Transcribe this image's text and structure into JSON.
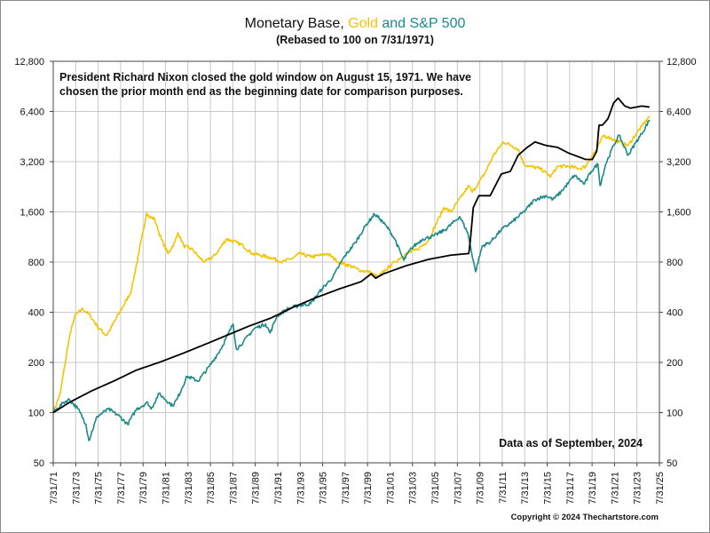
{
  "chart_data": {
    "type": "line",
    "title_parts": [
      {
        "text": "Monetary Base, ",
        "color": "#111111"
      },
      {
        "text": "Gold",
        "color": "#f5c400"
      },
      {
        "text": " and S&P 500",
        "color": "#1a8a8a"
      }
    ],
    "subtitle": "(Rebased to 100 on 7/31/1971)",
    "annotation": "President Richard Nixon closed the gold window on August 15, 1971.  We have chosen the prior month end as the beginning date for comparison purposes.",
    "data_note": "Data as of September, 2024",
    "y_scale": "log2",
    "ylim": [
      50,
      12800
    ],
    "xlim": [
      1971.58,
      2025.58
    ],
    "yticks": [
      "12,800",
      "6,400",
      "3,200",
      "1,600",
      "800",
      "400",
      "200",
      "100",
      "50"
    ],
    "xticks": [
      "7/31/71",
      "7/31/73",
      "7/31/75",
      "7/31/77",
      "7/31/79",
      "7/31/81",
      "7/31/83",
      "7/31/85",
      "7/31/87",
      "7/31/89",
      "7/31/91",
      "7/31/93",
      "7/31/95",
      "7/31/97",
      "7/31/99",
      "7/31/01",
      "7/31/03",
      "7/31/05",
      "7/31/07",
      "7/31/09",
      "7/31/11",
      "7/31/13",
      "7/31/15",
      "7/31/17",
      "7/31/19",
      "7/31/21",
      "7/31/23",
      "7/31/25"
    ],
    "grid": true,
    "series": [
      {
        "name": "Gold",
        "color": "#f5c400",
        "x": [
          1971.58,
          1972.2,
          1973.0,
          1973.5,
          1974.2,
          1974.9,
          1975.5,
          1976.3,
          1976.7,
          1977.5,
          1978.5,
          1979.2,
          1979.9,
          1980.1,
          1980.6,
          1981.2,
          1981.8,
          1982.4,
          1982.7,
          1983.2,
          1984.0,
          1984.6,
          1985.1,
          1986.0,
          1987.0,
          1987.9,
          1988.5,
          1989.3,
          1990.0,
          1991.0,
          1992.0,
          1993.0,
          1993.5,
          1994.5,
          1995.5,
          1996.0,
          1997.0,
          1998.0,
          1999.0,
          1999.7,
          2000.5,
          2001.2,
          2002.0,
          2003.0,
          2004.0,
          2005.0,
          2006.0,
          2006.4,
          2007.0,
          2008.0,
          2008.6,
          2008.9,
          2009.5,
          2010.0,
          2010.8,
          2011.7,
          2012.4,
          2013.0,
          2013.5,
          2014.0,
          2015.0,
          2015.9,
          2016.5,
          2017.5,
          2018.5,
          2019.0,
          2019.6,
          2020.0,
          2020.6,
          2021.0,
          2022.0,
          2022.8,
          2023.5,
          2024.0,
          2024.7
        ],
        "values": [
          100,
          130,
          280,
          380,
          420,
          380,
          330,
          290,
          320,
          400,
          530,
          900,
          1580,
          1500,
          1450,
          1100,
          900,
          1050,
          1200,
          1000,
          950,
          850,
          800,
          880,
          1100,
          1050,
          1000,
          900,
          880,
          850,
          800,
          850,
          900,
          860,
          880,
          900,
          800,
          760,
          710,
          700,
          650,
          720,
          800,
          900,
          950,
          1080,
          1500,
          1700,
          1600,
          2000,
          2300,
          2100,
          2400,
          2700,
          3500,
          4200,
          4000,
          3800,
          3100,
          3000,
          2900,
          2600,
          3000,
          3000,
          2900,
          3000,
          3500,
          3800,
          4600,
          4500,
          4200,
          4000,
          4700,
          5200,
          6000
        ]
      },
      {
        "name": "S&P 500",
        "color": "#1a8a8a",
        "x": [
          1971.58,
          1972.5,
          1973.0,
          1973.8,
          1974.5,
          1974.75,
          1975.5,
          1976.5,
          1977.5,
          1978.2,
          1979.0,
          1980.0,
          1980.3,
          1981.0,
          1982.2,
          1982.6,
          1983.5,
          1984.5,
          1985.5,
          1986.5,
          1987.6,
          1987.9,
          1988.5,
          1989.5,
          1990.5,
          1990.9,
          1991.5,
          1992.5,
          1993.5,
          1994.5,
          1995.5,
          1996.5,
          1997.5,
          1998.5,
          1999.5,
          2000.2,
          2000.7,
          2001.5,
          2002.0,
          2002.8,
          2003.5,
          2004.5,
          2005.5,
          2006.5,
          2007.8,
          2008.5,
          2009.2,
          2009.8,
          2010.5,
          2011.5,
          2012.5,
          2013.5,
          2014.5,
          2015.5,
          2016.1,
          2016.8,
          2017.5,
          2018.0,
          2018.9,
          2019.5,
          2020.1,
          2020.3,
          2020.8,
          2021.5,
          2021.99,
          2022.8,
          2023.5,
          2024.0,
          2024.7
        ],
        "values": [
          100,
          115,
          120,
          105,
          85,
          68,
          95,
          105,
          95,
          85,
          105,
          115,
          105,
          130,
          110,
          120,
          165,
          155,
          190,
          240,
          340,
          240,
          265,
          320,
          340,
          300,
          380,
          420,
          440,
          450,
          550,
          650,
          860,
          1050,
          1350,
          1550,
          1450,
          1250,
          1100,
          820,
          970,
          1100,
          1150,
          1250,
          1500,
          1200,
          700,
          1000,
          1050,
          1250,
          1400,
          1600,
          1900,
          2000,
          1900,
          2100,
          2400,
          2650,
          2350,
          2800,
          3100,
          2300,
          3100,
          4000,
          4600,
          3500,
          4200,
          4700,
          5700
        ]
      },
      {
        "name": "Monetary Base",
        "color": "#000000",
        "x": [
          1971.58,
          1973.0,
          1975.0,
          1977.0,
          1979.0,
          1981.0,
          1983.0,
          1985.0,
          1987.0,
          1989.0,
          1991.0,
          1993.0,
          1995.0,
          1997.0,
          1999.0,
          1999.9,
          2000.3,
          2001.0,
          2003.0,
          2005.0,
          2007.0,
          2008.6,
          2008.75,
          2009.0,
          2009.5,
          2010.5,
          2011.5,
          2012.3,
          2013.0,
          2013.8,
          2014.5,
          2015.5,
          2016.5,
          2017.5,
          2018.5,
          2019.0,
          2019.6,
          2020.0,
          2020.2,
          2020.5,
          2021.0,
          2021.5,
          2021.9,
          2022.5,
          2023.0,
          2023.5,
          2024.0,
          2024.7
        ],
        "values": [
          100,
          115,
          135,
          155,
          180,
          200,
          225,
          255,
          290,
          330,
          370,
          430,
          490,
          550,
          610,
          680,
          640,
          680,
          760,
          830,
          880,
          900,
          1100,
          1700,
          2000,
          2000,
          2700,
          2800,
          3500,
          3900,
          4200,
          4000,
          3900,
          3600,
          3400,
          3300,
          3300,
          3700,
          5300,
          5300,
          5800,
          7200,
          7700,
          6900,
          6700,
          6800,
          6900,
          6800
        ]
      }
    ]
  },
  "copyright": "Copyright © 2024 Thechartstore.com"
}
